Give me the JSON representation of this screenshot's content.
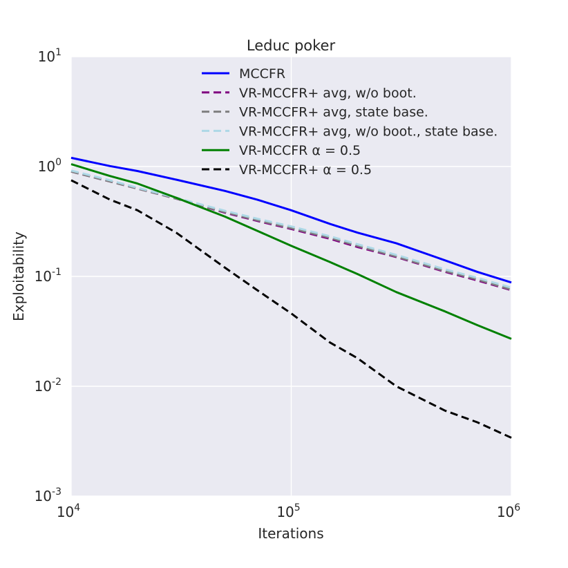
{
  "chart_data": {
    "type": "line",
    "title": "Leduc poker",
    "xlabel": "Iterations",
    "ylabel": "Exploitability",
    "xscale": "log",
    "yscale": "log",
    "xlim": [
      10000,
      1000000
    ],
    "ylim": [
      0.001,
      10
    ],
    "grid": true,
    "legend_position": "top-center",
    "x_ticks": [
      {
        "base": "10",
        "exp": "4",
        "value": 10000
      },
      {
        "base": "10",
        "exp": "5",
        "value": 100000
      },
      {
        "base": "10",
        "exp": "6",
        "value": 1000000
      }
    ],
    "y_ticks": [
      {
        "base": "10",
        "exp": "1",
        "value": 10
      },
      {
        "base": "10",
        "exp": "0",
        "value": 1
      },
      {
        "base": "10",
        "exp": "-1",
        "value": 0.1
      },
      {
        "base": "10",
        "exp": "-2",
        "value": 0.01
      },
      {
        "base": "10",
        "exp": "-3",
        "value": 0.001
      }
    ],
    "series": [
      {
        "name": "MCCFR",
        "color": "#0000ff",
        "dash": "solid",
        "x": [
          10000,
          15000,
          20000,
          30000,
          50000,
          70000,
          100000,
          150000,
          200000,
          300000,
          500000,
          700000,
          1000000
        ],
        "y": [
          1.2,
          1.01,
          0.91,
          0.76,
          0.6,
          0.5,
          0.4,
          0.3,
          0.25,
          0.2,
          0.14,
          0.11,
          0.088
        ]
      },
      {
        "name": "VR-MCCFR+ avg, w/o boot.",
        "color": "#800080",
        "dash": "dashed",
        "x": [
          10000,
          15000,
          20000,
          30000,
          50000,
          70000,
          100000,
          150000,
          200000,
          300000,
          500000,
          700000,
          1000000
        ],
        "y": [
          0.9,
          0.73,
          0.63,
          0.51,
          0.38,
          0.32,
          0.27,
          0.22,
          0.185,
          0.15,
          0.11,
          0.092,
          0.075
        ]
      },
      {
        "name": "VR-MCCFR+ avg, state base.",
        "color": "#808080",
        "dash": "dashed",
        "x": [
          10000,
          15000,
          20000,
          30000,
          50000,
          70000,
          100000,
          150000,
          200000,
          300000,
          500000,
          700000,
          1000000
        ],
        "y": [
          0.9,
          0.73,
          0.63,
          0.51,
          0.385,
          0.325,
          0.275,
          0.225,
          0.19,
          0.152,
          0.112,
          0.094,
          0.076
        ]
      },
      {
        "name": "VR-MCCFR+ avg, w/o boot., state base.",
        "color": "#add8e6",
        "dash": "dashed",
        "x": [
          10000,
          15000,
          20000,
          30000,
          50000,
          70000,
          100000,
          150000,
          200000,
          300000,
          500000,
          700000,
          1000000
        ],
        "y": [
          0.92,
          0.75,
          0.64,
          0.52,
          0.395,
          0.335,
          0.285,
          0.232,
          0.196,
          0.157,
          0.116,
          0.097,
          0.079
        ]
      },
      {
        "name": "VR-MCCFR α = 0.5",
        "color": "#008000",
        "dash": "solid",
        "x": [
          10000,
          15000,
          20000,
          30000,
          50000,
          70000,
          100000,
          150000,
          200000,
          300000,
          500000,
          700000,
          1000000
        ],
        "y": [
          1.05,
          0.82,
          0.7,
          0.52,
          0.35,
          0.26,
          0.19,
          0.135,
          0.105,
          0.072,
          0.048,
          0.036,
          0.027
        ]
      },
      {
        "name": "VR-MCCFR+ α = 0.5",
        "color": "#000000",
        "dash": "dashed",
        "x": [
          10000,
          15000,
          20000,
          30000,
          50000,
          70000,
          100000,
          150000,
          200000,
          300000,
          500000,
          700000,
          1000000
        ],
        "y": [
          0.75,
          0.5,
          0.4,
          0.25,
          0.12,
          0.075,
          0.046,
          0.025,
          0.018,
          0.01,
          0.006,
          0.0047,
          0.0034
        ]
      }
    ]
  }
}
